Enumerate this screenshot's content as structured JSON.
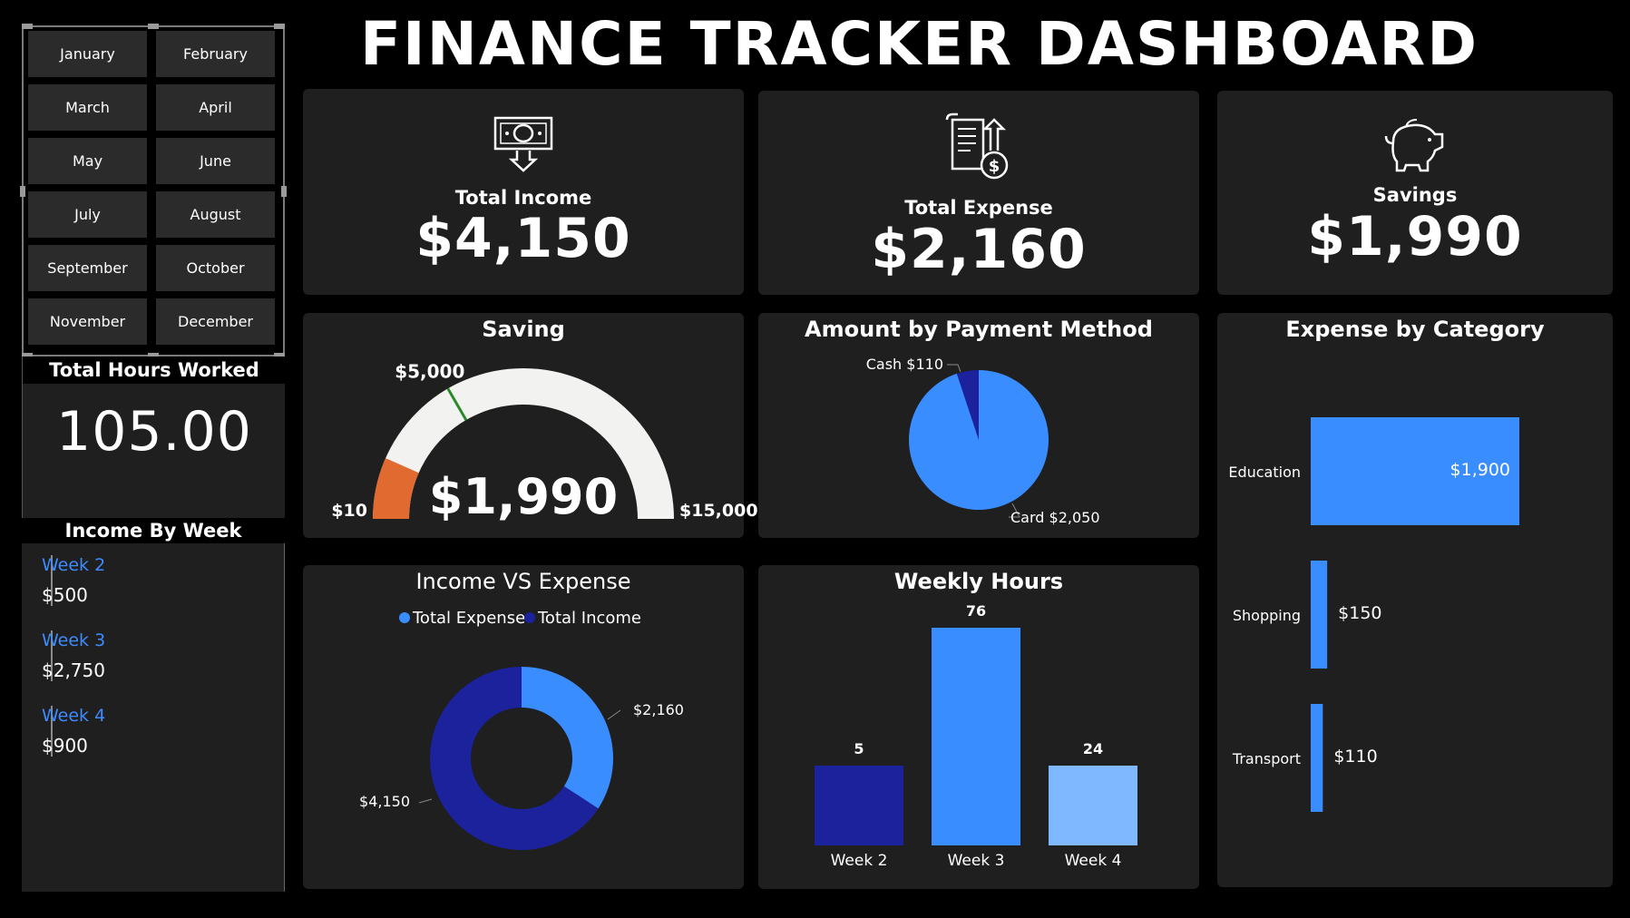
{
  "header": {
    "title": "FINANCE TRACKER DASHBOARD"
  },
  "months": [
    "January",
    "February",
    "March",
    "April",
    "May",
    "June",
    "July",
    "August",
    "September",
    "October",
    "November",
    "December"
  ],
  "kpis": {
    "income": {
      "label": "Total Income",
      "value": "$4,150"
    },
    "expense": {
      "label": "Total Expense",
      "value": "$2,160"
    },
    "savings": {
      "label": "Savings",
      "value": "$1,990"
    }
  },
  "hours_card": {
    "title": "Total Hours Worked",
    "value": "105.00"
  },
  "income_by_week": {
    "title": "Income By Week",
    "items": [
      {
        "label": "Week 2",
        "value": "$500"
      },
      {
        "label": "Week 3",
        "value": "$2,750"
      },
      {
        "label": "Week 4",
        "value": "$900"
      }
    ]
  },
  "colors": {
    "accent": "#3a8dff",
    "dark_blue": "#1b229c",
    "light_blue": "#7fb8ff",
    "orange": "#e16a30",
    "panel": "#1f1f1f"
  },
  "chart_data": [
    {
      "type": "gauge",
      "title": "Saving",
      "value": 1990,
      "value_label": "$1,990",
      "min": 10,
      "min_label": "$10",
      "max": 15000,
      "max_label": "$15,000",
      "target": 5000,
      "target_label": "$5,000"
    },
    {
      "type": "pie",
      "title": "Amount by Payment Method",
      "slices": [
        {
          "name": "Cash",
          "value": 110,
          "label": "Cash $110"
        },
        {
          "name": "Card",
          "value": 2050,
          "label": "Card $2,050"
        }
      ]
    },
    {
      "type": "bar",
      "orientation": "horizontal",
      "title": "Expense by Category",
      "categories": [
        "Education",
        "Shopping",
        "Transport"
      ],
      "values": [
        1900,
        150,
        110
      ],
      "value_labels": [
        "$1,900",
        "$150",
        "$110"
      ]
    },
    {
      "type": "donut",
      "title": "Income VS Expense",
      "legend": [
        "Total Expense",
        "Total Income"
      ],
      "slices": [
        {
          "name": "Total Expense",
          "value": 2160,
          "label": "$2,160"
        },
        {
          "name": "Total Income",
          "value": 4150,
          "label": "$4,150"
        }
      ]
    },
    {
      "type": "bar",
      "title": "Weekly Hours",
      "categories": [
        "Week 2",
        "Week 3",
        "Week 4"
      ],
      "values": [
        5,
        76,
        24
      ]
    }
  ]
}
